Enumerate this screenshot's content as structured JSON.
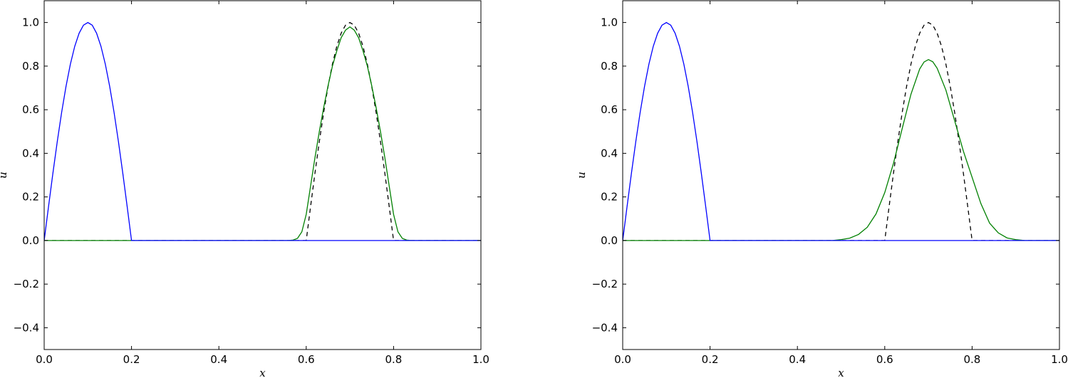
{
  "colors": {
    "initial": "#0000ff",
    "numerical": "#008000",
    "exact": "#000000"
  },
  "chart_data": [
    {
      "type": "line",
      "xlabel": "x",
      "ylabel": "u",
      "xlim": [
        0,
        1
      ],
      "ylim": [
        -0.5,
        1.1
      ],
      "grid": false,
      "xticks": [
        "0.0",
        "0.2",
        "0.4",
        "0.6",
        "0.8",
        "1.0"
      ],
      "yticks": [
        "−0.4",
        "−0.2",
        "0.0",
        "0.2",
        "0.4",
        "0.6",
        "0.8",
        "1.0"
      ],
      "series": [
        {
          "style": "dashed",
          "color": "#000000",
          "x": [
            0,
            0.6,
            0.61,
            0.62,
            0.63,
            0.64,
            0.65,
            0.66,
            0.67,
            0.68,
            0.69,
            0.7,
            0.71,
            0.72,
            0.73,
            0.74,
            0.75,
            0.76,
            0.77,
            0.78,
            0.79,
            0.8,
            1.0
          ],
          "y": [
            0,
            0,
            0.156,
            0.309,
            0.454,
            0.588,
            0.707,
            0.809,
            0.891,
            0.951,
            0.988,
            1,
            0.988,
            0.951,
            0.891,
            0.809,
            0.707,
            0.588,
            0.454,
            0.309,
            0.156,
            0,
            0
          ]
        },
        {
          "style": "solid",
          "color": "#008000",
          "x": [
            0,
            0.56,
            0.57,
            0.58,
            0.59,
            0.6,
            0.61,
            0.62,
            0.63,
            0.64,
            0.65,
            0.66,
            0.67,
            0.68,
            0.69,
            0.7,
            0.71,
            0.72,
            0.73,
            0.74,
            0.75,
            0.76,
            0.77,
            0.78,
            0.79,
            0.8,
            0.81,
            0.82,
            0.83,
            0.84,
            1.0
          ],
          "y": [
            0,
            0,
            0.002,
            0.01,
            0.04,
            0.12,
            0.25,
            0.38,
            0.5,
            0.61,
            0.71,
            0.8,
            0.87,
            0.93,
            0.965,
            0.98,
            0.965,
            0.93,
            0.87,
            0.8,
            0.71,
            0.61,
            0.5,
            0.38,
            0.25,
            0.12,
            0.04,
            0.01,
            0.002,
            0,
            0
          ]
        },
        {
          "style": "solid",
          "color": "#0000ff",
          "x": [
            0,
            0.01,
            0.02,
            0.03,
            0.04,
            0.05,
            0.06,
            0.07,
            0.08,
            0.09,
            0.1,
            0.11,
            0.12,
            0.13,
            0.14,
            0.15,
            0.16,
            0.17,
            0.18,
            0.19,
            0.2,
            1.0
          ],
          "y": [
            0,
            0.156,
            0.309,
            0.454,
            0.588,
            0.707,
            0.809,
            0.891,
            0.951,
            0.988,
            1,
            0.988,
            0.951,
            0.891,
            0.809,
            0.707,
            0.588,
            0.454,
            0.309,
            0.156,
            0,
            0
          ]
        }
      ]
    },
    {
      "type": "line",
      "xlabel": "x",
      "ylabel": "u",
      "xlim": [
        0,
        1
      ],
      "ylim": [
        -0.5,
        1.1
      ],
      "grid": false,
      "xticks": [
        "0.0",
        "0.2",
        "0.4",
        "0.6",
        "0.8",
        "1.0"
      ],
      "yticks": [
        "−0.4",
        "−0.2",
        "0.0",
        "0.2",
        "0.4",
        "0.6",
        "0.8",
        "1.0"
      ],
      "series": [
        {
          "style": "dashed",
          "color": "#000000",
          "x": [
            0,
            0.6,
            0.61,
            0.62,
            0.63,
            0.64,
            0.65,
            0.66,
            0.67,
            0.68,
            0.69,
            0.7,
            0.71,
            0.72,
            0.73,
            0.74,
            0.75,
            0.76,
            0.77,
            0.78,
            0.79,
            0.8,
            1.0
          ],
          "y": [
            0,
            0,
            0.156,
            0.309,
            0.454,
            0.588,
            0.707,
            0.809,
            0.891,
            0.951,
            0.988,
            1,
            0.988,
            0.951,
            0.891,
            0.809,
            0.707,
            0.588,
            0.454,
            0.309,
            0.156,
            0,
            0
          ]
        },
        {
          "style": "solid",
          "color": "#008000",
          "x": [
            0,
            0.48,
            0.5,
            0.52,
            0.54,
            0.56,
            0.58,
            0.6,
            0.62,
            0.64,
            0.66,
            0.68,
            0.69,
            0.7,
            0.71,
            0.72,
            0.74,
            0.76,
            0.78,
            0.8,
            0.82,
            0.84,
            0.86,
            0.88,
            0.9,
            0.92,
            1.0
          ],
          "y": [
            0,
            0,
            0.004,
            0.011,
            0.028,
            0.061,
            0.122,
            0.22,
            0.354,
            0.514,
            0.671,
            0.787,
            0.819,
            0.83,
            0.82,
            0.79,
            0.69,
            0.55,
            0.41,
            0.29,
            0.17,
            0.08,
            0.035,
            0.012,
            0.004,
            0,
            0
          ]
        },
        {
          "style": "solid",
          "color": "#0000ff",
          "x": [
            0,
            0.01,
            0.02,
            0.03,
            0.04,
            0.05,
            0.06,
            0.07,
            0.08,
            0.09,
            0.1,
            0.11,
            0.12,
            0.13,
            0.14,
            0.15,
            0.16,
            0.17,
            0.18,
            0.19,
            0.2,
            1.0
          ],
          "y": [
            0,
            0.156,
            0.309,
            0.454,
            0.588,
            0.707,
            0.809,
            0.891,
            0.951,
            0.988,
            1,
            0.988,
            0.951,
            0.891,
            0.809,
            0.707,
            0.588,
            0.454,
            0.309,
            0.156,
            0,
            0
          ]
        }
      ]
    }
  ]
}
